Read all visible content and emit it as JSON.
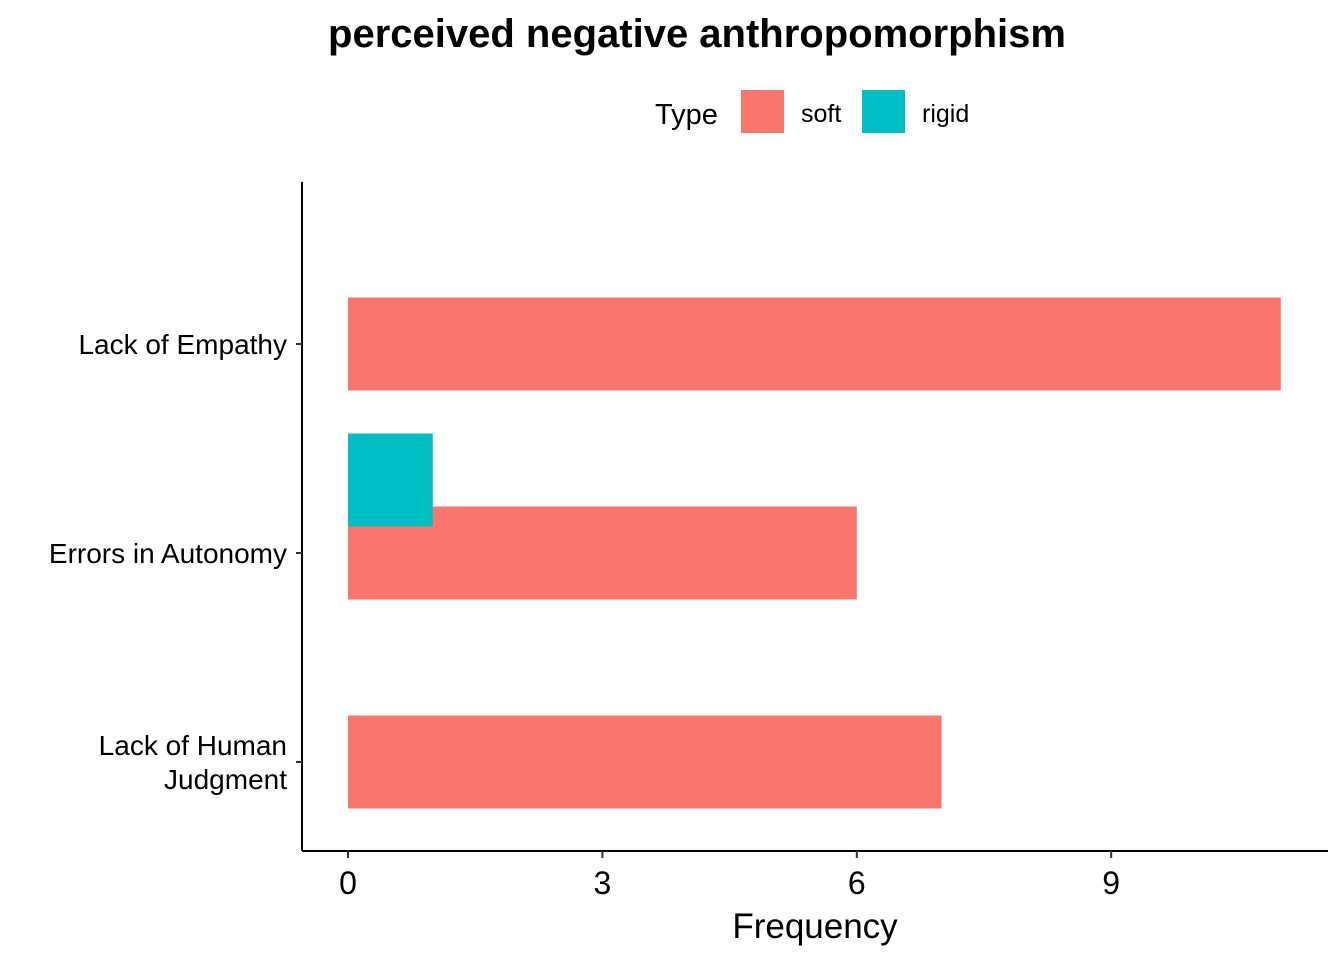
{
  "chart_data": {
    "type": "bar",
    "orientation": "horizontal",
    "title": "perceived negative anthropomorphism",
    "xlabel": "Frequency",
    "ylabel": "",
    "categories": [
      [
        "Lack of Empathy"
      ],
      [
        "Errors in Autonomy"
      ],
      [
        "Lack of Human",
        "Judgment"
      ]
    ],
    "series": [
      {
        "name": "soft",
        "color": "#F8766D",
        "values": [
          11,
          6,
          7
        ]
      },
      {
        "name": "rigid",
        "color": "#00BFC4",
        "values": [
          0,
          1,
          0
        ]
      }
    ],
    "legend": {
      "title": "Type",
      "position": "top"
    },
    "xlim": [
      0,
      11.6
    ],
    "xticks": [
      0,
      3,
      6,
      9
    ],
    "grid": false
  }
}
